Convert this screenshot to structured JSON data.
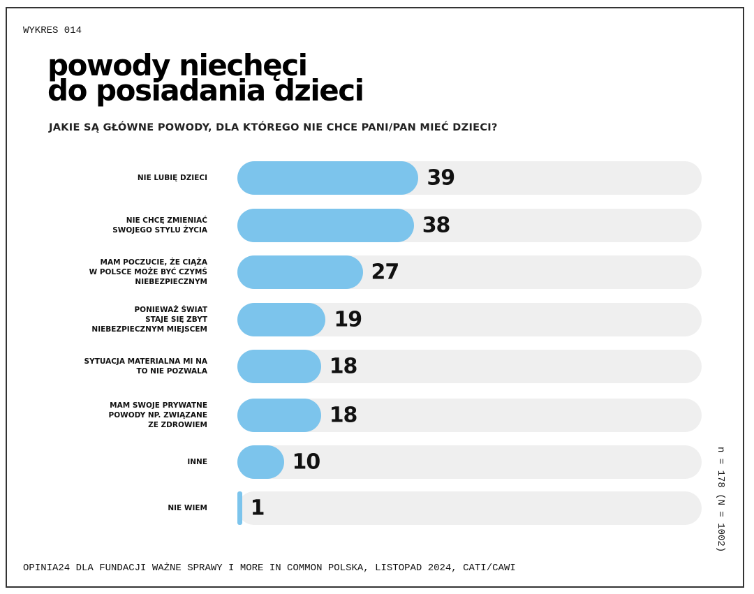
{
  "chart_code": "WYKRES 014",
  "chart_data": {
    "type": "bar",
    "orientation": "horizontal",
    "title": "powody niechęci do posiadania dzieci",
    "title_lines": [
      "powody niechęci",
      "do posiadania dzieci"
    ],
    "subtitle": "JAKIE SĄ GŁÓWNE POWODY, DLA KTÓREGO NIE CHCE PANI/PAN MIEĆ DZIECI?",
    "categories": [
      "NIE LUBIĘ DZIECI",
      "NIE CHCĘ ZMIENIAĆ\nSWOJEGO STYLU ŻYCIA",
      "MAM POCZUCIE, ŻE CIĄŻA\nW POLSCE MOŻE BYĆ CZYMŚ\nNIEBEZPIECZNYM",
      "PONIEWAŻ ŚWIAT\nSTAJE SIĘ ZBYT\nNIEBEZPIECZNYM MIEJSCEM",
      "SYTUACJA MATERIALNA MI NA\nTO NIE POZWALA",
      "MAM SWOJE PRYWATNE\nPOWODY NP. ZWIĄZANE\nZE ZDROWIEM",
      "INNE",
      "NIE WIEM"
    ],
    "values": [
      39,
      38,
      27,
      19,
      18,
      18,
      10,
      1
    ],
    "xlim": [
      0,
      100
    ],
    "bar_color": "#7cc4ec",
    "track_color": "#efefef"
  },
  "footer": "OPINIA24 DLA FUNDACJI WAŻNE SPRAWY I MORE IN COMMON POLSKA, LISTOPAD 2024, CATI/CAWI",
  "sample_note": "n = 178 (N = 1002)"
}
